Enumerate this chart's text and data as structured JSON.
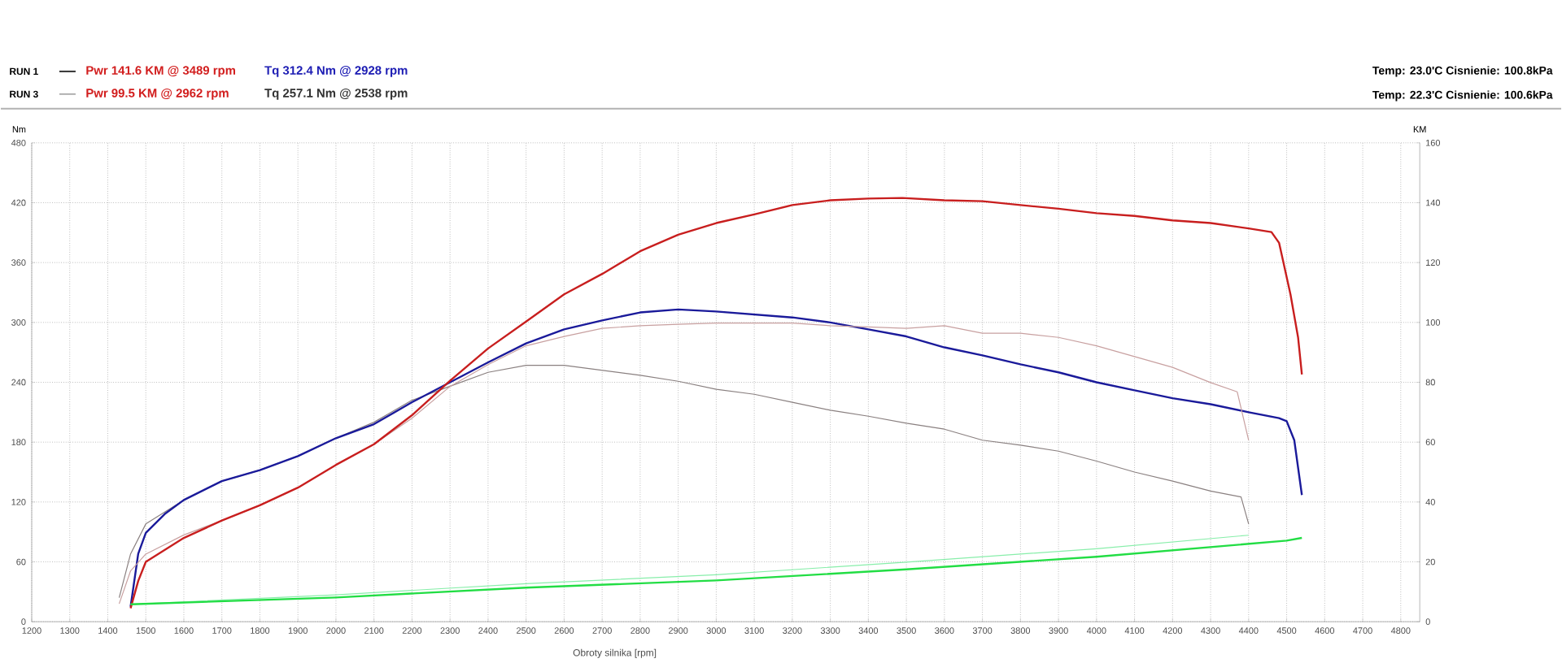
{
  "chart_data": {
    "type": "line",
    "xlabel": "Obroty silnika [rpm]",
    "ylabel": "Nm",
    "y2label": "KM",
    "xlim": [
      1200,
      4850
    ],
    "xticks": [
      1200,
      1300,
      1400,
      1500,
      1600,
      1700,
      1800,
      1900,
      2000,
      2100,
      2200,
      2300,
      2400,
      2500,
      2600,
      2700,
      2800,
      2900,
      3000,
      3100,
      3200,
      3300,
      3400,
      3500,
      3600,
      3700,
      3800,
      3900,
      4000,
      4100,
      4200,
      4300,
      4400,
      4500,
      4600,
      4700,
      4800
    ],
    "ylim": [
      0,
      480
    ],
    "yticks": [
      0,
      60,
      120,
      180,
      240,
      300,
      360,
      420,
      480
    ],
    "y2lim": [
      0,
      160
    ],
    "y2ticks": [
      0,
      20,
      40,
      60,
      80,
      100,
      120,
      140,
      160
    ],
    "grid": true,
    "line_style": "solid",
    "marker": "none",
    "annotations": [
      "RUN 1",
      "Pwr 141.6 KM @ 3489 rpm",
      "Tq 312.4 Nm @ 2928 rpm",
      "RUN 3",
      "Pwr 99.5 KM @ 2962 rpm",
      "Tq 257.1 Nm @ 2538 rpm",
      "Temp: 23.0'C   Cisnienie: 100.8kPa",
      "Temp: 22.3'C   Cisnienie: 100.6kPa"
    ],
    "series": [
      {
        "color": "#c8a0a0",
        "axis": "y2",
        "x": [
          1430,
          1460,
          1500,
          1600,
          1700,
          1800,
          1900,
          2000,
          2100,
          2200,
          2300,
          2400,
          2500,
          2600,
          2700,
          2800,
          2900,
          3000,
          3100,
          3200,
          3300,
          3400,
          3500,
          3600,
          3700,
          3800,
          3900,
          4000,
          4100,
          4200,
          4300,
          4370,
          4400
        ],
        "values": [
          6,
          17,
          22.6,
          29,
          33.8,
          38.9,
          44.8,
          52.4,
          59.3,
          68,
          78.6,
          85.9,
          92.2,
          95.3,
          98,
          98.9,
          99.4,
          99.8,
          99.8,
          99.8,
          98.9,
          98.5,
          98,
          98.9,
          96.4,
          96.4,
          95,
          92.2,
          88.6,
          85,
          79.9,
          76.8,
          60.6
        ]
      },
      {
        "color": "#8a8080",
        "x": [
          1430,
          1460,
          1500,
          1600,
          1700,
          1800,
          1900,
          2000,
          2100,
          2200,
          2300,
          2400,
          2500,
          2600,
          2700,
          2800,
          2900,
          3000,
          3100,
          3200,
          3300,
          3400,
          3500,
          3600,
          3700,
          3800,
          3900,
          4000,
          4100,
          4200,
          4300,
          4380,
          4400
        ],
        "values": [
          24,
          68,
          98,
          122,
          141,
          152,
          166,
          184,
          200,
          222,
          236,
          250,
          257,
          257,
          252,
          247,
          241,
          233,
          228,
          220,
          212,
          206,
          199,
          193,
          182,
          177,
          171,
          161,
          150,
          141,
          131,
          125,
          98
        ]
      },
      {
        "color": "#88eeaa",
        "axis": "y2",
        "x": [
          1460,
          2000,
          2500,
          3000,
          3500,
          4000,
          4400
        ],
        "values": [
          5.8,
          9,
          12.7,
          15.7,
          19.9,
          24.4,
          28.9
        ]
      },
      {
        "color": "#c81e1e",
        "axis": "y2",
        "x": [
          1460,
          1480,
          1500,
          1600,
          1700,
          1800,
          1900,
          2000,
          2100,
          2200,
          2300,
          2400,
          2500,
          2600,
          2700,
          2800,
          2900,
          3000,
          3100,
          3200,
          3300,
          3400,
          3489,
          3600,
          3700,
          3800,
          3900,
          4000,
          4100,
          4200,
          4300,
          4400,
          4460,
          4480,
          4510,
          4530,
          4540
        ],
        "values": [
          4.5,
          13.6,
          20,
          28,
          33.8,
          38.9,
          44.8,
          52.4,
          59.3,
          69,
          80.5,
          91.3,
          100.3,
          109.4,
          116.2,
          123.8,
          129.3,
          133.2,
          136.1,
          139.2,
          140.8,
          141.4,
          141.6,
          140.8,
          140.5,
          139.2,
          138,
          136.5,
          135.6,
          134.1,
          133.2,
          131.4,
          130.2,
          126.6,
          109.4,
          95,
          82.6
        ]
      },
      {
        "color": "#1a1a9a",
        "x": [
          1460,
          1480,
          1500,
          1550,
          1600,
          1700,
          1800,
          1900,
          2000,
          2100,
          2200,
          2300,
          2400,
          2500,
          2600,
          2700,
          2800,
          2900,
          3000,
          3100,
          3200,
          3300,
          3400,
          3500,
          3600,
          3700,
          3800,
          3900,
          4000,
          4100,
          4200,
          4300,
          4400,
          4480,
          4500,
          4520,
          4540
        ],
        "values": [
          15,
          68,
          89,
          108,
          122,
          141,
          152,
          166,
          184,
          198,
          220,
          240,
          260,
          279,
          293,
          302,
          310,
          313,
          311,
          308,
          305,
          300,
          293,
          286,
          275,
          267,
          258,
          250,
          240,
          232,
          224,
          218,
          210,
          204,
          201,
          182,
          127
        ]
      },
      {
        "color": "#22dd44",
        "axis": "y2",
        "x": [
          1460,
          2000,
          2500,
          3000,
          3500,
          4000,
          4500,
          4540
        ],
        "values": [
          5.8,
          8.1,
          11.4,
          13.8,
          17.5,
          21.7,
          27.1,
          28
        ]
      }
    ]
  }
}
